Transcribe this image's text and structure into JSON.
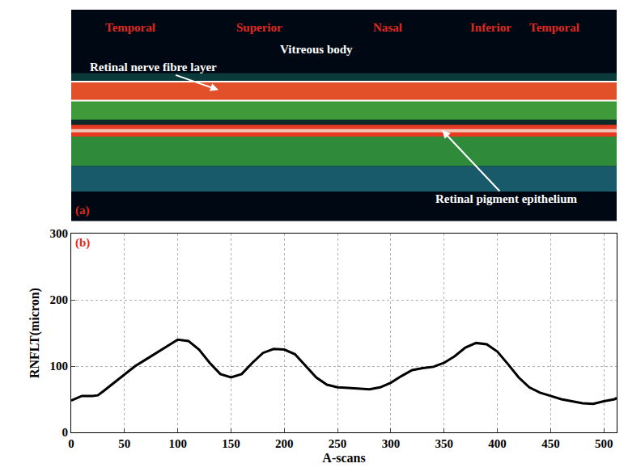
{
  "chart_data": {
    "type": "line",
    "panel_label": "(b)",
    "x_label": "A-scans",
    "y_label": "RNFLT(micron)",
    "x": [
      0,
      5,
      10,
      20,
      25,
      30,
      40,
      50,
      60,
      70,
      80,
      90,
      100,
      110,
      120,
      130,
      140,
      150,
      160,
      170,
      180,
      190,
      200,
      210,
      220,
      230,
      240,
      250,
      260,
      270,
      280,
      290,
      300,
      310,
      320,
      330,
      340,
      350,
      360,
      370,
      380,
      390,
      400,
      410,
      420,
      430,
      440,
      450,
      460,
      470,
      480,
      490,
      500,
      510,
      512
    ],
    "values": [
      48,
      52,
      55,
      55,
      56,
      62,
      75,
      88,
      100,
      110,
      120,
      130,
      140,
      138,
      125,
      105,
      88,
      83,
      88,
      105,
      120,
      126,
      125,
      118,
      100,
      83,
      72,
      68,
      67,
      66,
      65,
      68,
      75,
      85,
      94,
      97,
      99,
      105,
      115,
      128,
      135,
      133,
      122,
      103,
      83,
      68,
      60,
      55,
      50,
      47,
      44,
      43,
      47,
      50,
      52
    ],
    "color": "#000000",
    "xlim": [
      0,
      512
    ],
    "xticks": [
      0,
      50,
      100,
      150,
      200,
      250,
      300,
      350,
      400,
      450,
      500
    ],
    "ylim": [
      0,
      300
    ],
    "yticks": [
      0,
      100,
      200,
      300
    ],
    "grid": true
  },
  "image_panel": {
    "panel_label": "(a)",
    "region_labels": [
      "Temporal",
      "Superior",
      "Nasal",
      "Inferior",
      "Temporal"
    ],
    "structure_labels": {
      "rnfl": "Retinal nerve fibre layer",
      "vitreous": "Vitreous body",
      "rpe": "Retinal pigment epithelium"
    }
  }
}
